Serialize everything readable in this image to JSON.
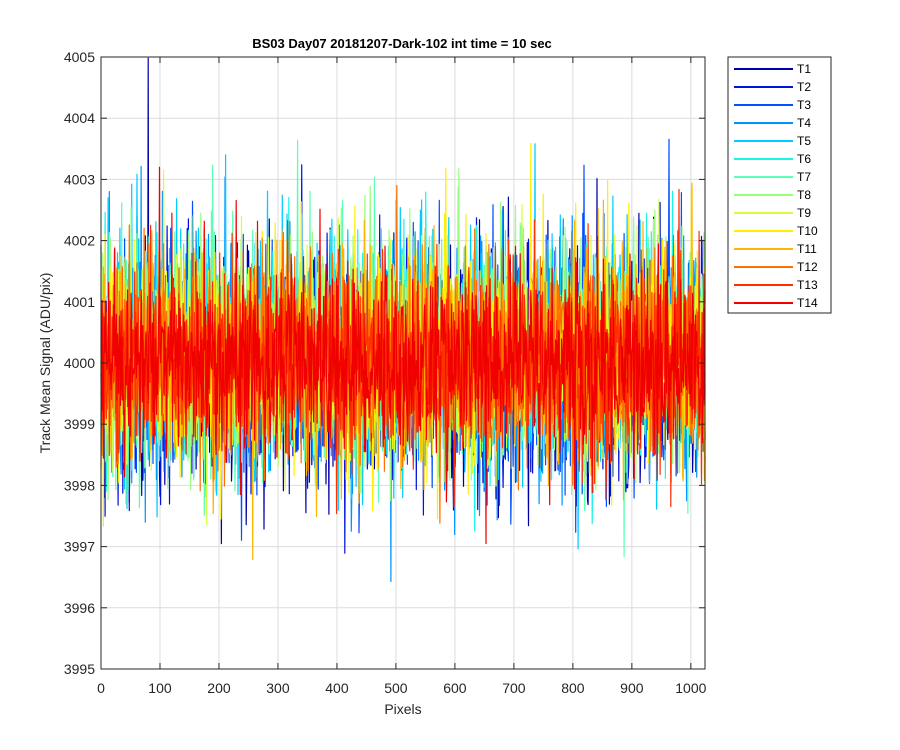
{
  "chart_data": {
    "type": "line",
    "title": "BS03 Day07 20181207-Dark-102 int time = 10 sec",
    "xlabel": "Pixels",
    "ylabel": "Track Mean Signal (ADU/pix)",
    "xlim": [
      0,
      1024
    ],
    "ylim": [
      3995,
      4005
    ],
    "xticks": [
      0,
      100,
      200,
      300,
      400,
      500,
      600,
      700,
      800,
      900,
      1000
    ],
    "yticks": [
      3995,
      3996,
      3997,
      3998,
      3999,
      4000,
      4001,
      4002,
      4003,
      4004,
      4005
    ],
    "grid": true,
    "legend_position": "outside-right",
    "points_per_series": 1024,
    "series": [
      {
        "name": "T1",
        "color": "#0000a8",
        "mean": 3999.85,
        "spread": 1.15
      },
      {
        "name": "T2",
        "color": "#0014dc",
        "mean": 3999.9,
        "spread": 1.15
      },
      {
        "name": "T3",
        "color": "#0050ff",
        "mean": 3999.95,
        "spread": 1.1
      },
      {
        "name": "T4",
        "color": "#0094ff",
        "mean": 4000.0,
        "spread": 1.15
      },
      {
        "name": "T5",
        "color": "#00ccff",
        "mean": 4000.1,
        "spread": 1.2
      },
      {
        "name": "T6",
        "color": "#1af5e8",
        "mean": 4000.1,
        "spread": 1.1
      },
      {
        "name": "T7",
        "color": "#5cffb4",
        "mean": 4000.1,
        "spread": 1.05
      },
      {
        "name": "T8",
        "color": "#98ff7a",
        "mean": 4000.15,
        "spread": 1.1
      },
      {
        "name": "T9",
        "color": "#d4ff3c",
        "mean": 4000.1,
        "spread": 1.05
      },
      {
        "name": "T10",
        "color": "#ffef00",
        "mean": 4000.05,
        "spread": 1.05
      },
      {
        "name": "T11",
        "color": "#ffb400",
        "mean": 4000.05,
        "spread": 1.05
      },
      {
        "name": "T12",
        "color": "#ff7000",
        "mean": 4000.0,
        "spread": 1.0
      },
      {
        "name": "T13",
        "color": "#ff3000",
        "mean": 4000.0,
        "spread": 0.95
      },
      {
        "name": "T14",
        "color": "#f00000",
        "mean": 4000.0,
        "spread": 0.95
      }
    ]
  }
}
